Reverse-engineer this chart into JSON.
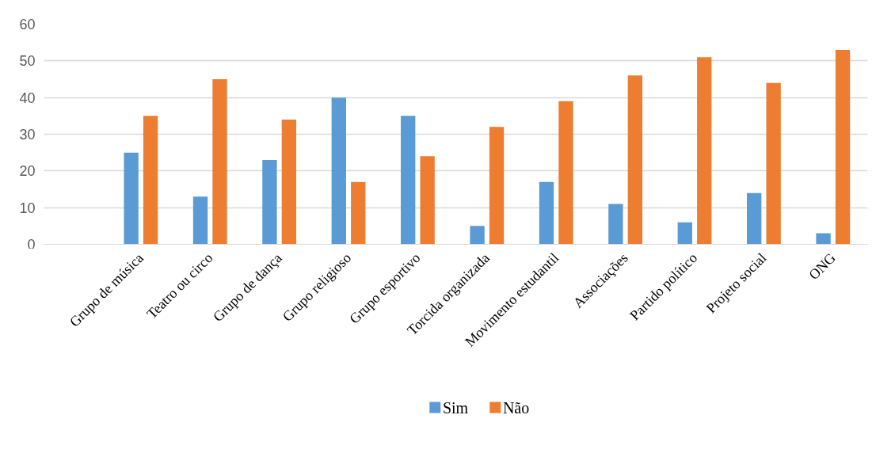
{
  "chart_data": {
    "type": "bar",
    "categories": [
      "Grupo de música",
      "Teatro ou circo",
      "Grupo de dança",
      "Grupo religioso",
      "Grupo esportivo",
      "Torcida organizada",
      "Movimento estudantil",
      "Associações",
      "Partido político",
      "Projeto social",
      "ONG"
    ],
    "series": [
      {
        "name": "Sim",
        "color": "#5b9bd5",
        "values": [
          25,
          13,
          23,
          40,
          35,
          5,
          17,
          11,
          6,
          14,
          3
        ]
      },
      {
        "name": "Não",
        "color": "#ed7d31",
        "values": [
          35,
          45,
          34,
          17,
          24,
          32,
          39,
          46,
          51,
          44,
          53
        ]
      }
    ],
    "ylim": [
      0,
      60
    ],
    "yticks": [
      0,
      10,
      20,
      30,
      40,
      50,
      60
    ],
    "grid": "y",
    "legend": "bottom"
  }
}
